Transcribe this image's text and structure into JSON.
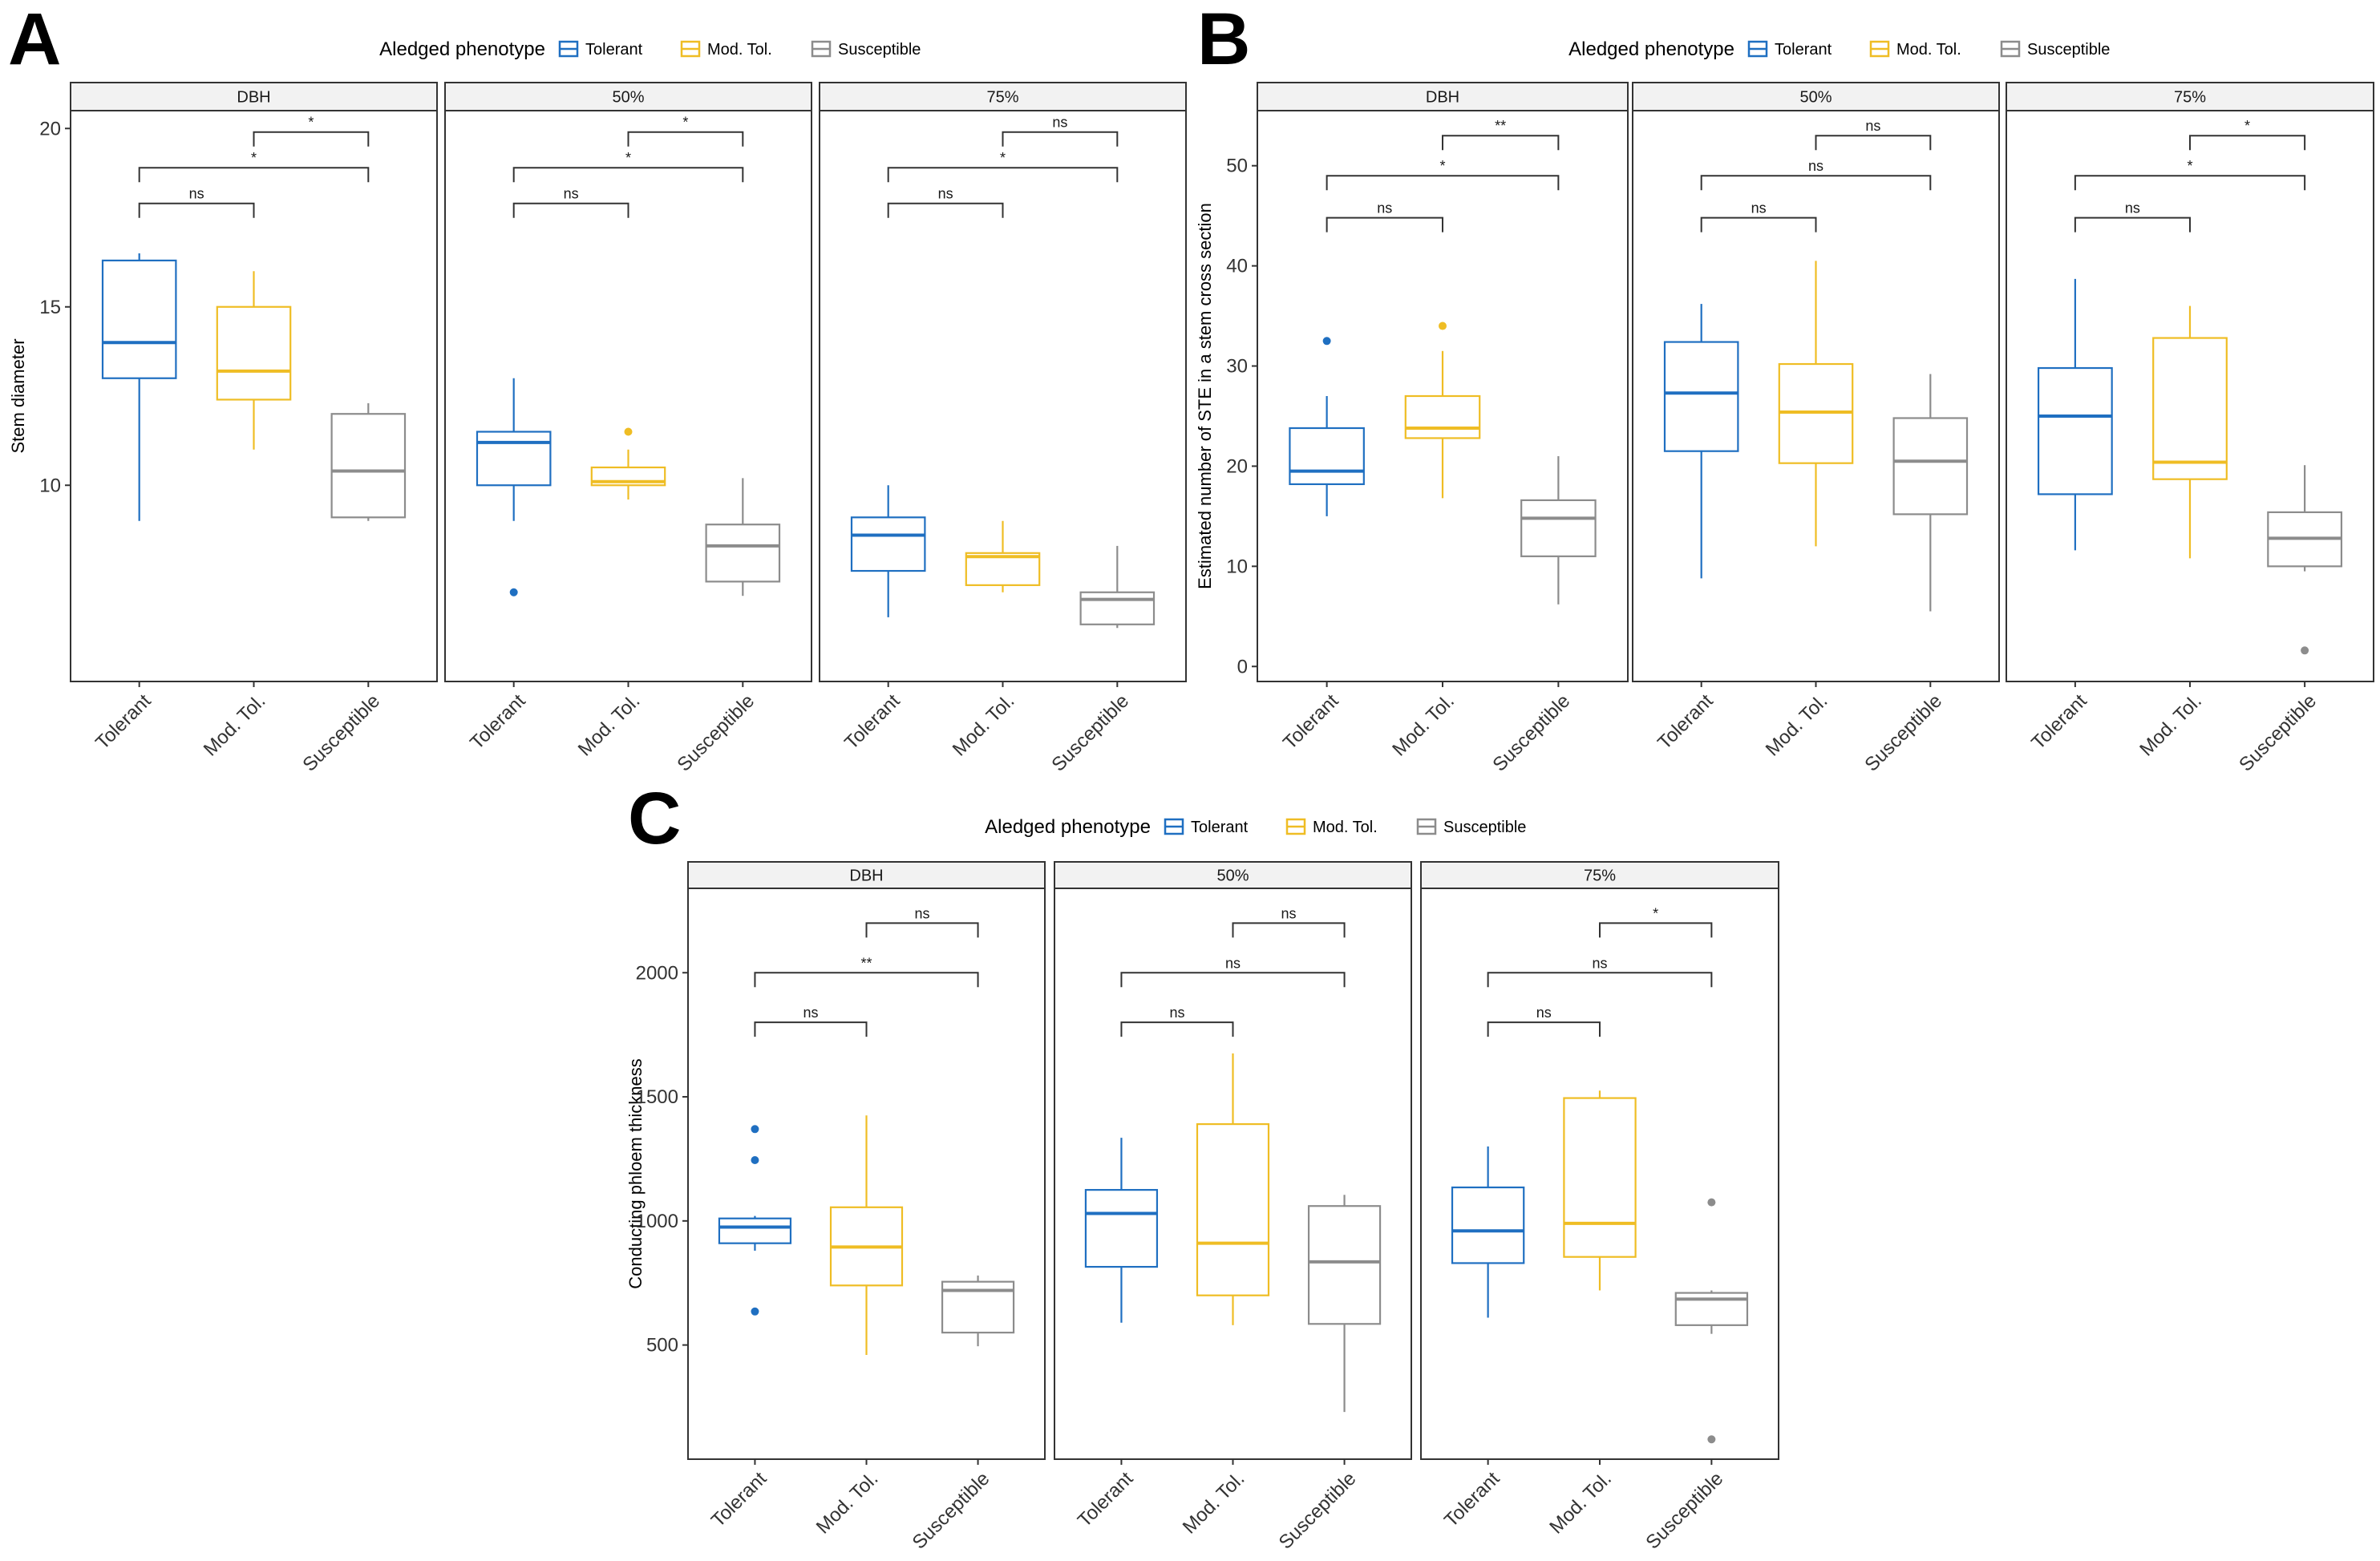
{
  "figure": {
    "legend_title": "Aledged phenotype",
    "groups": [
      "Tolerant",
      "Mod. Tol.",
      "Susceptible"
    ],
    "group_colors": [
      "#1f6fc1",
      "#efbd24",
      "#8c8c8c"
    ],
    "strips": [
      "DBH",
      "50%",
      "75%"
    ]
  },
  "chart_data": [
    {
      "type": "boxplot",
      "panel": "A",
      "ylabel": "Stem diameter",
      "yticks": [
        10,
        15,
        20
      ],
      "ylim": [
        4.5,
        20.5
      ],
      "facets": [
        {
          "strip": "DBH",
          "boxes": [
            {
              "group": "Tolerant",
              "min": 9.0,
              "q1": 13.0,
              "median": 14.0,
              "q3": 16.3,
              "max": 16.5,
              "outliers": []
            },
            {
              "group": "Mod. Tol.",
              "min": 11.0,
              "q1": 12.4,
              "median": 13.2,
              "q3": 15.0,
              "max": 16.0,
              "outliers": []
            },
            {
              "group": "Susceptible",
              "min": 9.0,
              "q1": 9.1,
              "median": 10.4,
              "q3": 12.0,
              "max": 12.3,
              "outliers": []
            }
          ],
          "brackets": [
            {
              "from": 0,
              "to": 1,
              "y": 17.9,
              "label": "ns"
            },
            {
              "from": 0,
              "to": 2,
              "y": 18.9,
              "label": "*"
            },
            {
              "from": 1,
              "to": 2,
              "y": 19.9,
              "label": "*"
            }
          ]
        },
        {
          "strip": "50%",
          "boxes": [
            {
              "group": "Tolerant",
              "min": 9.0,
              "q1": 10.0,
              "median": 11.2,
              "q3": 11.5,
              "max": 13.0,
              "outliers": [
                7.0
              ]
            },
            {
              "group": "Mod. Tol.",
              "min": 9.6,
              "q1": 10.0,
              "median": 10.1,
              "q3": 10.5,
              "max": 11.0,
              "outliers": [
                11.5
              ]
            },
            {
              "group": "Susceptible",
              "min": 6.9,
              "q1": 7.3,
              "median": 8.3,
              "q3": 8.9,
              "max": 10.2,
              "outliers": []
            }
          ],
          "brackets": [
            {
              "from": 0,
              "to": 1,
              "y": 17.9,
              "label": "ns"
            },
            {
              "from": 0,
              "to": 2,
              "y": 18.9,
              "label": "*"
            },
            {
              "from": 1,
              "to": 2,
              "y": 19.9,
              "label": "*"
            }
          ]
        },
        {
          "strip": "75%",
          "boxes": [
            {
              "group": "Tolerant",
              "min": 6.3,
              "q1": 7.6,
              "median": 8.6,
              "q3": 9.1,
              "max": 10.0,
              "outliers": []
            },
            {
              "group": "Mod. Tol.",
              "min": 7.0,
              "q1": 7.2,
              "median": 8.0,
              "q3": 8.1,
              "max": 9.0,
              "outliers": []
            },
            {
              "group": "Susceptible",
              "min": 6.0,
              "q1": 6.1,
              "median": 6.8,
              "q3": 7.0,
              "max": 8.3,
              "outliers": []
            }
          ],
          "brackets": [
            {
              "from": 0,
              "to": 1,
              "y": 17.9,
              "label": "ns"
            },
            {
              "from": 0,
              "to": 2,
              "y": 18.9,
              "label": "*"
            },
            {
              "from": 1,
              "to": 2,
              "y": 19.9,
              "label": "ns"
            }
          ]
        }
      ]
    },
    {
      "type": "boxplot",
      "panel": "B",
      "ylabel": "Estimated number of STE in a stem cross section",
      "yticks": [
        0,
        10,
        20,
        30,
        40,
        50
      ],
      "ylim": [
        -1.5,
        55.5
      ],
      "facets": [
        {
          "strip": "DBH",
          "boxes": [
            {
              "group": "Tolerant",
              "min": 15.0,
              "q1": 18.2,
              "median": 19.5,
              "q3": 23.8,
              "max": 27.0,
              "outliers": [
                32.5
              ]
            },
            {
              "group": "Mod. Tol.",
              "min": 16.8,
              "q1": 22.8,
              "median": 23.8,
              "q3": 27.0,
              "max": 31.5,
              "outliers": [
                34.0
              ]
            },
            {
              "group": "Susceptible",
              "min": 6.2,
              "q1": 11.0,
              "median": 14.8,
              "q3": 16.6,
              "max": 21.0,
              "outliers": []
            }
          ],
          "brackets": [
            {
              "from": 0,
              "to": 1,
              "y": 44.8,
              "label": "ns"
            },
            {
              "from": 0,
              "to": 2,
              "y": 49.0,
              "label": "*"
            },
            {
              "from": 1,
              "to": 2,
              "y": 53.0,
              "label": "**"
            }
          ]
        },
        {
          "strip": "50%",
          "boxes": [
            {
              "group": "Tolerant",
              "min": 8.8,
              "q1": 21.5,
              "median": 27.3,
              "q3": 32.4,
              "max": 36.2,
              "outliers": []
            },
            {
              "group": "Mod. Tol.",
              "min": 12.0,
              "q1": 20.3,
              "median": 25.4,
              "q3": 30.2,
              "max": 40.5,
              "outliers": []
            },
            {
              "group": "Susceptible",
              "min": 5.5,
              "q1": 15.2,
              "median": 20.5,
              "q3": 24.8,
              "max": 29.2,
              "outliers": []
            }
          ],
          "brackets": [
            {
              "from": 0,
              "to": 1,
              "y": 44.8,
              "label": "ns"
            },
            {
              "from": 0,
              "to": 2,
              "y": 49.0,
              "label": "ns"
            },
            {
              "from": 1,
              "to": 2,
              "y": 53.0,
              "label": "ns"
            }
          ]
        },
        {
          "strip": "75%",
          "boxes": [
            {
              "group": "Tolerant",
              "min": 11.6,
              "q1": 17.2,
              "median": 25.0,
              "q3": 29.8,
              "max": 38.7,
              "outliers": []
            },
            {
              "group": "Mod. Tol.",
              "min": 10.8,
              "q1": 18.7,
              "median": 20.4,
              "q3": 32.8,
              "max": 36.0,
              "outliers": []
            },
            {
              "group": "Susceptible",
              "min": 9.5,
              "q1": 10.0,
              "median": 12.8,
              "q3": 15.4,
              "max": 20.1,
              "outliers": [
                1.6
              ]
            }
          ],
          "brackets": [
            {
              "from": 0,
              "to": 1,
              "y": 44.8,
              "label": "ns"
            },
            {
              "from": 0,
              "to": 2,
              "y": 49.0,
              "label": "*"
            },
            {
              "from": 1,
              "to": 2,
              "y": 53.0,
              "label": "*"
            }
          ]
        }
      ]
    },
    {
      "type": "boxplot",
      "panel": "C",
      "ylabel": "Conducting phloem thickness",
      "yticks": [
        500,
        1000,
        1500,
        2000
      ],
      "ylim": [
        40,
        2340
      ],
      "facets": [
        {
          "strip": "DBH",
          "boxes": [
            {
              "group": "Tolerant",
              "min": 880,
              "q1": 910,
              "median": 975,
              "q3": 1010,
              "max": 1020,
              "outliers": [
                1370,
                1245,
                635
              ]
            },
            {
              "group": "Mod. Tol.",
              "min": 460,
              "q1": 740,
              "median": 895,
              "q3": 1055,
              "max": 1425,
              "outliers": []
            },
            {
              "group": "Susceptible",
              "min": 495,
              "q1": 550,
              "median": 720,
              "q3": 755,
              "max": 780,
              "outliers": []
            }
          ],
          "brackets": [
            {
              "from": 0,
              "to": 1,
              "y": 1800,
              "label": "ns"
            },
            {
              "from": 0,
              "to": 2,
              "y": 2000,
              "label": "**"
            },
            {
              "from": 1,
              "to": 2,
              "y": 2200,
              "label": "ns"
            }
          ]
        },
        {
          "strip": "50%",
          "boxes": [
            {
              "group": "Tolerant",
              "min": 590,
              "q1": 815,
              "median": 1030,
              "q3": 1125,
              "max": 1335,
              "outliers": []
            },
            {
              "group": "Mod. Tol.",
              "min": 580,
              "q1": 700,
              "median": 910,
              "q3": 1390,
              "max": 1675,
              "outliers": []
            },
            {
              "group": "Susceptible",
              "min": 230,
              "q1": 585,
              "median": 835,
              "q3": 1060,
              "max": 1105,
              "outliers": []
            }
          ],
          "brackets": [
            {
              "from": 0,
              "to": 1,
              "y": 1800,
              "label": "ns"
            },
            {
              "from": 0,
              "to": 2,
              "y": 2000,
              "label": "ns"
            },
            {
              "from": 1,
              "to": 2,
              "y": 2200,
              "label": "ns"
            }
          ]
        },
        {
          "strip": "75%",
          "boxes": [
            {
              "group": "Tolerant",
              "min": 610,
              "q1": 830,
              "median": 960,
              "q3": 1135,
              "max": 1300,
              "outliers": []
            },
            {
              "group": "Mod. Tol.",
              "min": 720,
              "q1": 855,
              "median": 990,
              "q3": 1495,
              "max": 1525,
              "outliers": []
            },
            {
              "group": "Susceptible",
              "min": 545,
              "q1": 580,
              "median": 685,
              "q3": 710,
              "max": 720,
              "outliers": [
                1075,
                120
              ]
            }
          ],
          "brackets": [
            {
              "from": 0,
              "to": 1,
              "y": 1800,
              "label": "ns"
            },
            {
              "from": 0,
              "to": 2,
              "y": 2000,
              "label": "ns"
            },
            {
              "from": 1,
              "to": 2,
              "y": 2200,
              "label": "*"
            }
          ]
        }
      ]
    }
  ]
}
